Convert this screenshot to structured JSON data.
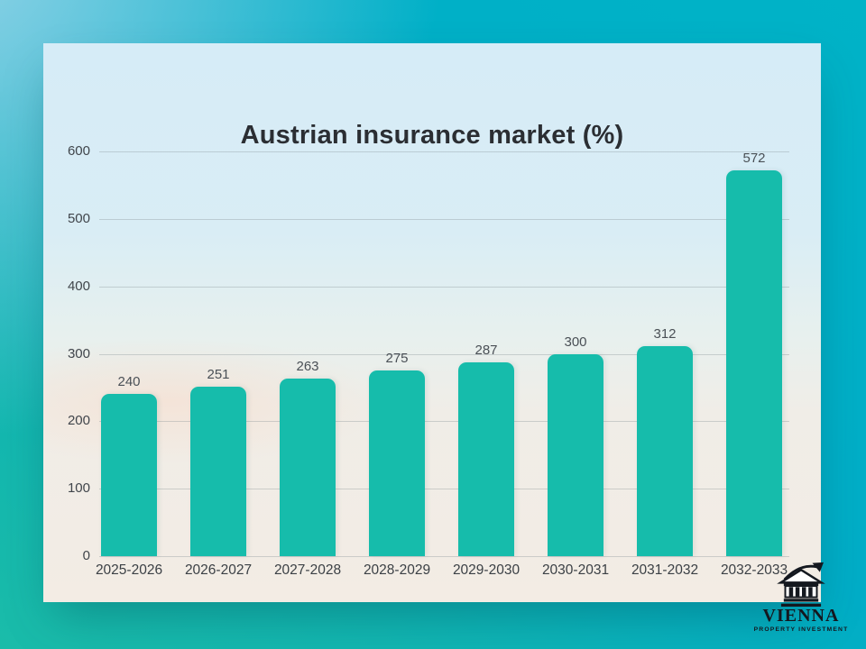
{
  "chart_data": {
    "type": "bar",
    "title": "Austrian insurance market (%)",
    "categories": [
      "2025-2026",
      "2026-2027",
      "2027-2028",
      "2028-2029",
      "2029-2030",
      "2030-2031",
      "2031-2032",
      "2032-2033"
    ],
    "values": [
      240,
      251,
      263,
      275,
      287,
      300,
      312,
      572
    ],
    "xlabel": "",
    "ylabel": "",
    "ylim": [
      0,
      600
    ],
    "yticks": [
      0,
      100,
      200,
      300,
      400,
      500,
      600
    ],
    "grid": true,
    "legend": false,
    "data_labels": true,
    "bar_color": "#16bcab"
  },
  "colors": {
    "background_cyan": "#00adc7",
    "background_teal": "#1abca9",
    "card_top": "#d6ecf7",
    "card_bottom": "#f3ece4",
    "text_dark": "#2b2e33",
    "tick_text": "#40454b"
  },
  "logo": {
    "name": "VIENNA",
    "subtitle": "PROPERTY INVESTMENT",
    "icon": "bank-building-arrow-icon"
  }
}
